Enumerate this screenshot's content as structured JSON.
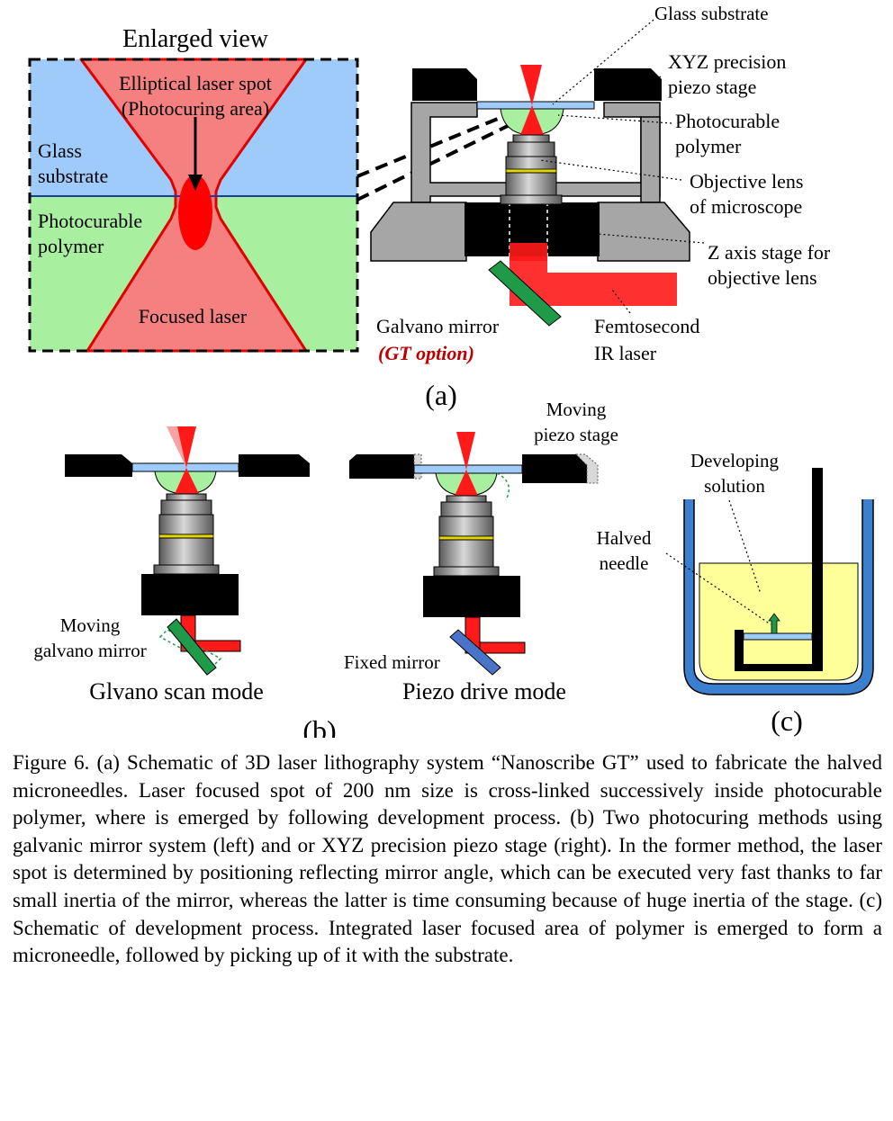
{
  "panel_a": {
    "enlarged_view_title": "Enlarged view",
    "spot_label_1": "Elliptical laser spot",
    "spot_label_2": "(Photocuring area)",
    "glass_label_1": "Glass",
    "glass_label_2": "substrate",
    "polymer_label_1": "Photocurable",
    "polymer_label_2": "polymer",
    "focused_laser_label": "Focused laser",
    "glass_substrate_callout": "Glass substrate",
    "xyz_stage_callout_1": "XYZ precision",
    "xyz_stage_callout_2": "piezo stage",
    "polymer_callout_1": "Photocurable",
    "polymer_callout_2": "polymer",
    "objective_callout_1": "Objective lens",
    "objective_callout_2": "of microscope",
    "zstage_callout_1": "Z axis stage for",
    "zstage_callout_2": "objective lens",
    "galvano_label": "Galvano mirror",
    "gt_option": "(GT option)",
    "laser_callout_1": "Femtosecond",
    "laser_callout_2": "IR laser",
    "panel_letter": "(a)"
  },
  "panel_b": {
    "moving_piezo_1": "Moving",
    "moving_piezo_2": "piezo stage",
    "moving_galvano_1": "Moving",
    "moving_galvano_2": "galvano mirror",
    "fixed_mirror": "Fixed mirror",
    "galvano_mode_title": "Glvano scan mode",
    "piezo_mode_title": "Piezo drive mode",
    "panel_letter": "(b)"
  },
  "panel_c": {
    "developing_1": "Developing",
    "developing_2": "solution",
    "halved_1": "Halved",
    "halved_2": "needle",
    "panel_letter": "(c)"
  },
  "caption": "Figure 6. (a) Schematic of 3D laser lithography system “Nanoscribe GT” used to fabricate the halved microneedles. Laser focused spot of 200 nm size is cross-linked successively inside photocurable polymer, where is emerged by following development process. (b) Two photocuring methods using galvanic mirror system (left) and or XYZ precision piezo stage (right). In the former method, the laser spot is determined by positioning reflecting mirror angle, which can be executed very fast thanks to far small inertia of the mirror, whereas the latter is time consuming because of huge inertia of the stage. (c) Schematic of development process. Integrated laser focused area of polymer is emerged to form a microneedle, followed by picking up of it with the substrate.",
  "colors": {
    "glass": "#9ecbfa",
    "polymer": "#a8f0a0",
    "laser": "#ff1a1a",
    "focused_laser": "#f48080",
    "stage_gray": "#a6a6a6",
    "galvano_green": "#1f9a48",
    "fixed_mirror_blue": "#4a74c8",
    "developing_solution": "#ffff99",
    "accent_red_text": "#c00000"
  }
}
